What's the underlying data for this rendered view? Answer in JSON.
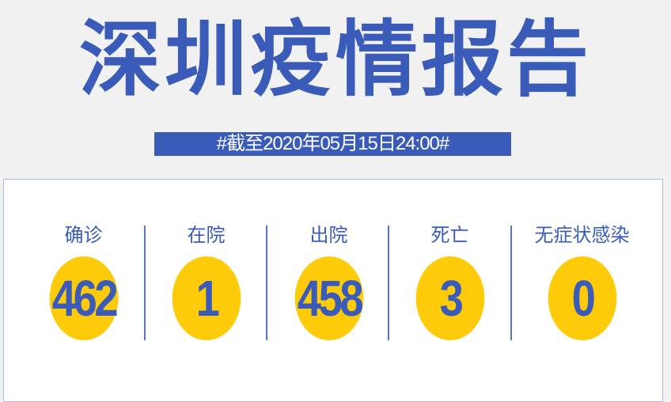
{
  "title": "深圳疫情报告",
  "date_banner": "#截至2020年05月15日24:00#",
  "stats": [
    {
      "label": "确诊",
      "value": "462"
    },
    {
      "label": "在院",
      "value": "1"
    },
    {
      "label": "出院",
      "value": "458"
    },
    {
      "label": "死亡",
      "value": "3"
    },
    {
      "label": "无症状感染",
      "value": "0"
    }
  ],
  "colors": {
    "blue": "#3a5cb8",
    "yellow": "#fecb0a"
  }
}
